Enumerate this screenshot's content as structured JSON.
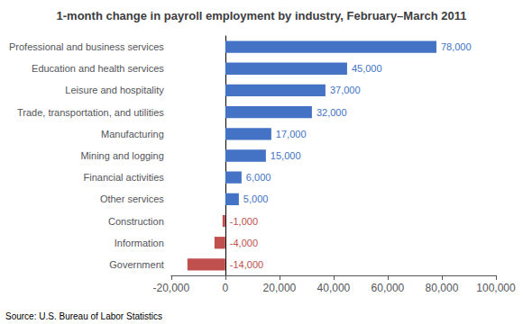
{
  "chart_data": {
    "type": "bar",
    "orientation": "horizontal",
    "title": "1-month change in payroll employment by industry, February–March 2011",
    "annotation": "Source: U.S. Bureau of Labor Statistics",
    "categories": [
      "Professional and business services",
      "Education and health services",
      "Leisure and hospitality",
      "Trade, transportation, and utilities",
      "Manufacturing",
      "Mining and logging",
      "Financial activities",
      "Other services",
      "Construction",
      "Information",
      "Government"
    ],
    "values": [
      78000,
      45000,
      37000,
      32000,
      17000,
      15000,
      6000,
      5000,
      -1000,
      -4000,
      -14000
    ],
    "value_labels": [
      "78,000",
      "45,000",
      "37,000",
      "32,000",
      "17,000",
      "15,000",
      "6,000",
      "5,000",
      "-1,000",
      "-4,000",
      "-14,000"
    ],
    "colors": [
      "#4472c4",
      "#4472c4",
      "#4472c4",
      "#4472c4",
      "#4472c4",
      "#4472c4",
      "#4472c4",
      "#4472c4",
      "#c0504d",
      "#c0504d",
      "#c0504d"
    ],
    "data_labels": true,
    "xlim": [
      -20000,
      100000
    ],
    "xticks": [
      {
        "value": -20000,
        "label": "-20,000"
      },
      0,
      {
        "value": 20000,
        "label": "20,000"
      },
      {
        "value": 40000,
        "label": "40,000"
      },
      {
        "value": 60000,
        "label": "60,000"
      },
      {
        "value": 80000,
        "label": "80,000"
      },
      {
        "value": 100000,
        "label": "100,000"
      }
    ],
    "grid": false
  }
}
